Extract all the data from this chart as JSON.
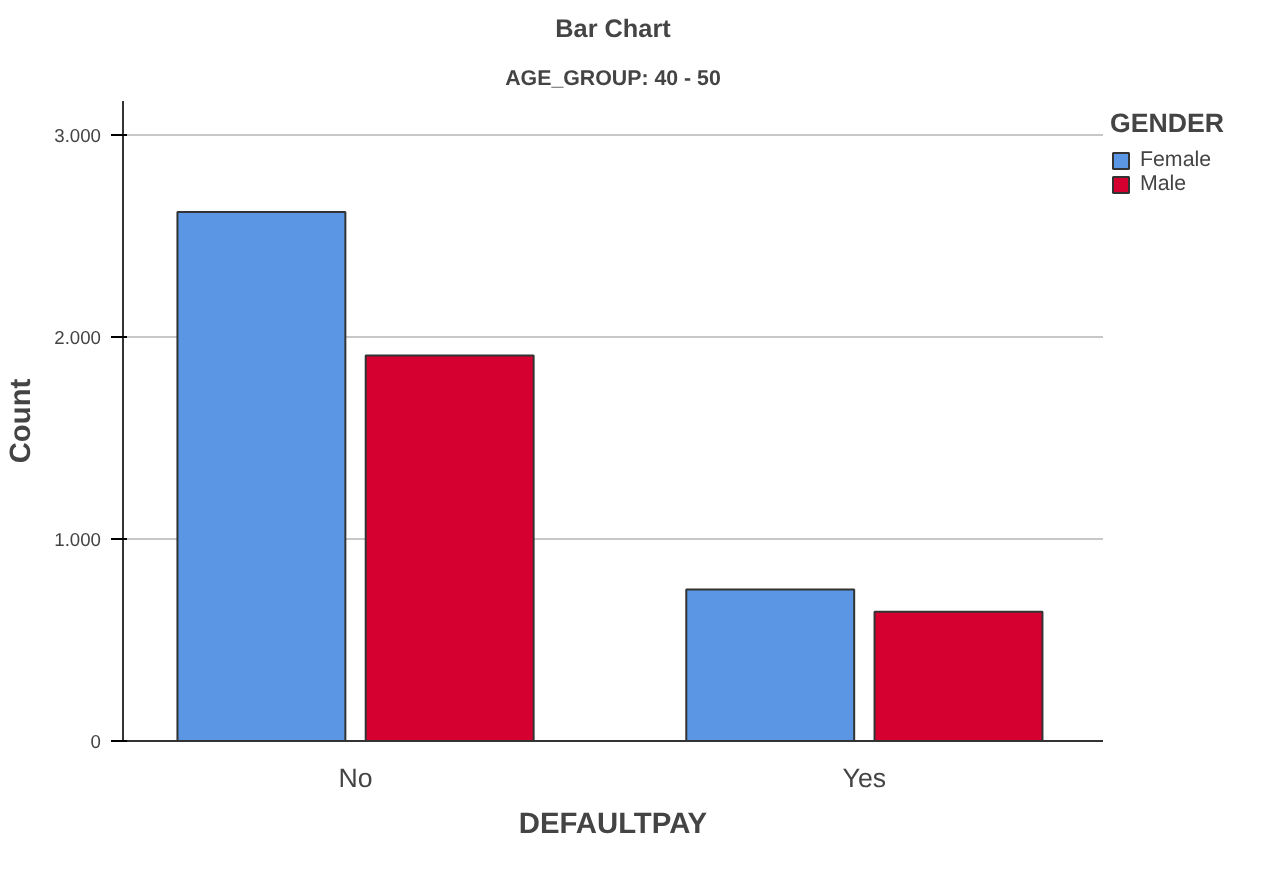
{
  "chart_data": {
    "type": "bar",
    "title": "Bar Chart",
    "subtitle": "AGE_GROUP: 40 - 50",
    "xlabel": "DEFAULTPAY",
    "ylabel": "Count",
    "legend_title": "GENDER",
    "categories": [
      "No",
      "Yes"
    ],
    "series": [
      {
        "name": "Female",
        "color": "#5a96e3",
        "values": [
          2620,
          750
        ]
      },
      {
        "name": "Male",
        "color": "#d5002f",
        "values": [
          1910,
          640
        ]
      }
    ],
    "ylim": [
      0,
      3170
    ],
    "yticks": [
      {
        "value": 0,
        "label": "0"
      },
      {
        "value": 1000,
        "label": "1.000"
      },
      {
        "value": 2000,
        "label": "2.000"
      },
      {
        "value": 3000,
        "label": "3.000"
      }
    ],
    "grid": "y",
    "legend": "top right"
  }
}
